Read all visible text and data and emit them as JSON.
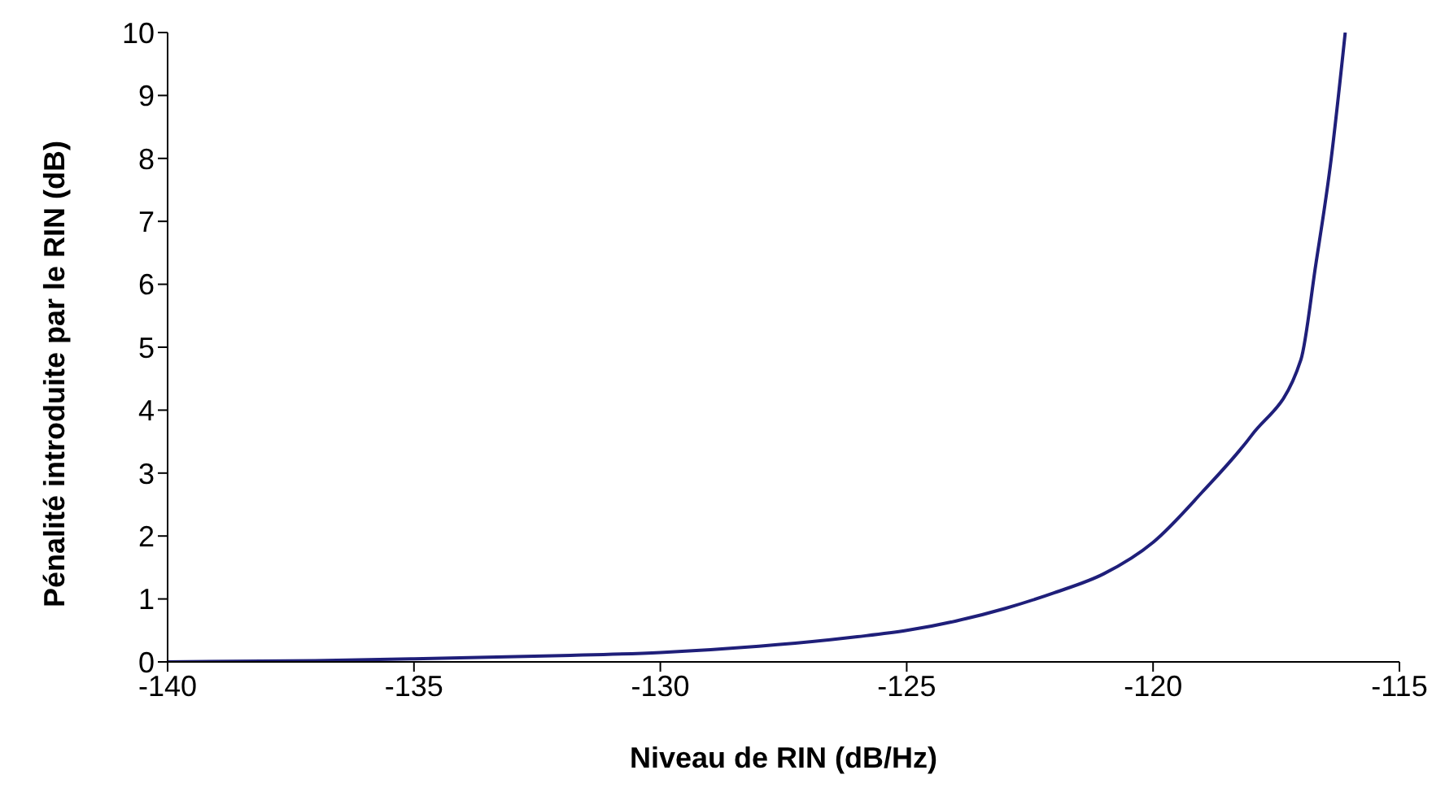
{
  "chart_data": {
    "type": "line",
    "xlabel": "Niveau de RIN (dB/Hz)",
    "ylabel": "Pénalité introduite par le RIN (dB)",
    "x": [
      -140,
      -137,
      -135,
      -132,
      -130,
      -128,
      -126,
      -125,
      -124,
      -123,
      -122,
      -121,
      -120,
      -119,
      -118,
      -117,
      -116.7,
      -116.4,
      -116.1
    ],
    "series": [
      {
        "color": "#1f1f7a",
        "values": [
          0,
          0.02,
          0.05,
          0.1,
          0.15,
          0.25,
          0.4,
          0.5,
          0.65,
          0.85,
          1.1,
          1.4,
          1.9,
          2.7,
          3.6,
          4.8,
          6.3,
          7.9,
          10
        ]
      }
    ],
    "xlim": [
      -140,
      -115
    ],
    "xticks": [
      -140,
      -135,
      -130,
      -125,
      -120,
      -115
    ],
    "ylim": [
      0,
      10
    ],
    "yticks": [
      0,
      1,
      2,
      3,
      4,
      5,
      6,
      7,
      8,
      9,
      10
    ],
    "grid": false,
    "legend": false,
    "marker": "none",
    "line_style": "solid"
  }
}
